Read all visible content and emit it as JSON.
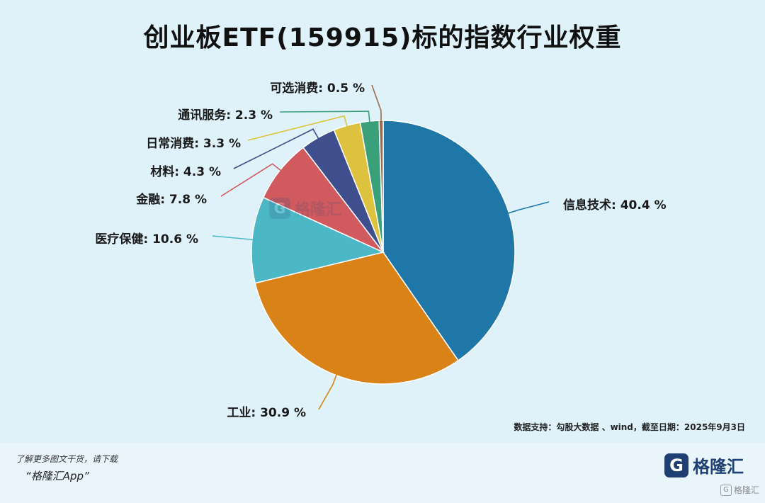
{
  "chart_data": {
    "type": "pie",
    "title": "创业板ETF(159915)标的指数行业权重",
    "source": "数据支持：勾股大数据 、wind，截至日期：2025年9月3日",
    "slices": [
      {
        "name": "信息技术",
        "value": 40.4,
        "label": "信息技术: 40.4 %",
        "color": "#1f77a8"
      },
      {
        "name": "工业",
        "value": 30.9,
        "label": "工业: 30.9 %",
        "color": "#d98218"
      },
      {
        "name": "医疗保健",
        "value": 10.6,
        "label": "医疗保健: 10.6 %",
        "color": "#4cb8c6"
      },
      {
        "name": "金融",
        "value": 7.8,
        "label": "金融: 7.8 %",
        "color": "#d05a5e"
      },
      {
        "name": "材料",
        "value": 4.3,
        "label": "材料: 4.3 %",
        "color": "#3f4f8e"
      },
      {
        "name": "日常消费",
        "value": 3.3,
        "label": "日常消费: 3.3 %",
        "color": "#dcc23e"
      },
      {
        "name": "通讯服务",
        "value": 2.3,
        "label": "通讯服务: 2.3 %",
        "color": "#3aa079"
      },
      {
        "name": "可选消费",
        "value": 0.5,
        "label": "可选消费: 0.5 %",
        "color": "#9b6b4c"
      }
    ]
  },
  "watermark": {
    "center_mark": "G",
    "center_text": "格隆汇",
    "corner_mark": "G",
    "corner_text": "格隆汇"
  },
  "footer": {
    "promo_line": "了解更多图文干货，请下载",
    "promo_app": "“格隆汇App”",
    "brand_mark": "G",
    "brand_name": "格隆汇"
  }
}
